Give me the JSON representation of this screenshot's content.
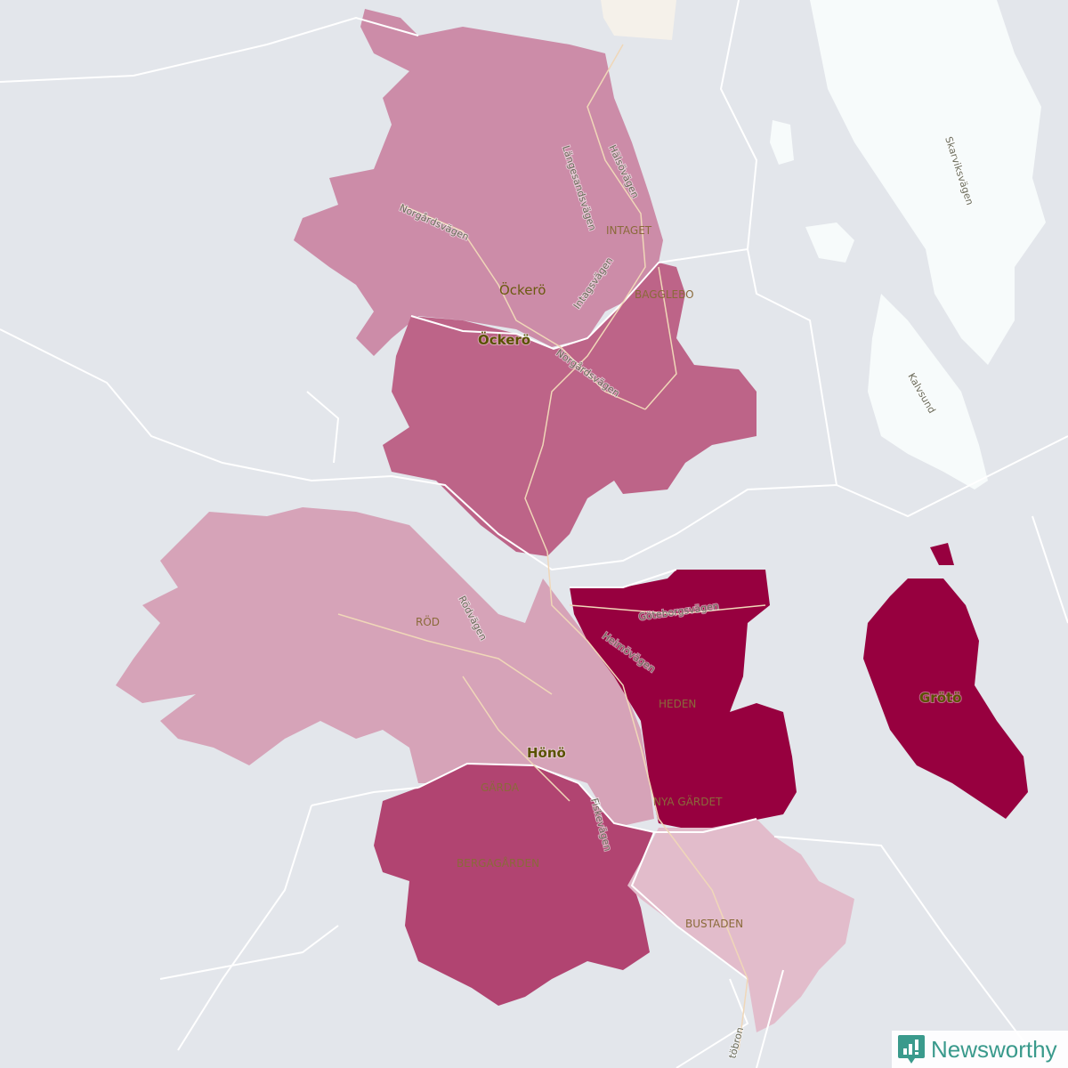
{
  "map": {
    "colors": {
      "water": "#e3e6eb",
      "mainland": "#f7fbfb",
      "ockero_north": "#cc8ca8",
      "ockero_south": "#bd6488",
      "rod": "#d6a3b8",
      "gardа_bergagarden": "#b14471",
      "heden": "#97003f",
      "groto": "#97003f",
      "bustaden": "#e2bccb",
      "border": "#ffffff"
    },
    "places": {
      "ockero_bold": "Öckerö",
      "ockero": "Öckerö",
      "hono": "Hönö",
      "groto": "Grötö"
    },
    "areas": {
      "intaget": "INTAGET",
      "bagglebo": "BAGGLEBO",
      "rod": "RÖD",
      "heden": "HEDEN",
      "garda": "GÄRDA",
      "bergagarden": "BERGAGÅRDEN",
      "nya_gardet": "NYA GÄRDET",
      "bustaden": "BUSTADEN"
    },
    "roads": {
      "norgardsvagen_1": "Norgårdsvägen",
      "norgardsvagen_2": "Norgårdsvägen",
      "langesandsvagen": "Längesandsvägen",
      "halsovagen": "Hälsövägen",
      "intagsvagen": "Intagsvägen",
      "rodvagen": "Rödvägen",
      "goteborgsvagen": "Göteborgsvägen",
      "heimovagen": "Heimövägen",
      "fiskevagen": "Fiskevägen",
      "skarviksvagen": "Skarviksvägen",
      "kalvsund": "Kalvsund",
      "bron": "töbron"
    }
  },
  "branding": {
    "logo_text": "Newsworthy"
  }
}
